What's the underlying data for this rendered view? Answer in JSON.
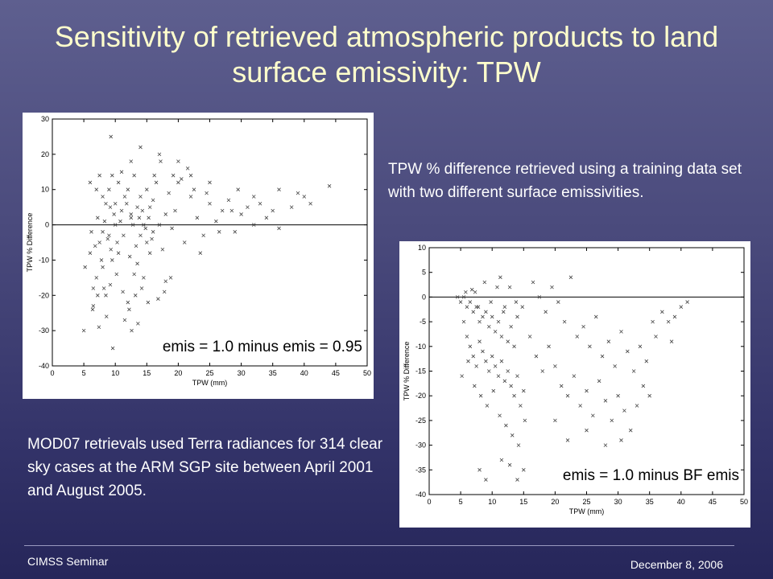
{
  "slide": {
    "title": "Sensitivity of retrieved atmospheric products to land surface emissivity: TPW",
    "description_right": "TPW % difference retrieved using a training data set with two different surface emissivities.",
    "description_left": "MOD07 retrievals used Terra radiances for 314 clear sky cases at the ARM SGP site between April 2001 and August 2005.",
    "footer_left": "CIMSS Seminar",
    "footer_right": "December 8, 2006"
  },
  "chart_data": [
    {
      "type": "scatter",
      "label": "emis = 1.0 minus emis = 0.95",
      "xlabel": "TPW (mm)",
      "ylabel": "TPW % Difference",
      "xlim": [
        0,
        50
      ],
      "ylim": [
        -40,
        30
      ],
      "xticks": [
        0,
        5,
        10,
        15,
        20,
        25,
        30,
        35,
        40,
        45,
        50
      ],
      "yticks": [
        -40,
        -30,
        -20,
        -10,
        0,
        10,
        20,
        30
      ],
      "reference_line_y": 0,
      "marker": "x",
      "points": [
        [
          5,
          -30
        ],
        [
          5.2,
          -12
        ],
        [
          6,
          -8
        ],
        [
          6.5,
          -23
        ],
        [
          7,
          -15
        ],
        [
          7.5,
          -5
        ],
        [
          8,
          -2
        ],
        [
          8,
          -12
        ],
        [
          8.5,
          -20
        ],
        [
          9,
          -3
        ],
        [
          9.2,
          5
        ],
        [
          9.5,
          -10
        ],
        [
          10,
          0
        ],
        [
          10.5,
          -8
        ],
        [
          11,
          15
        ],
        [
          11.5,
          -27
        ],
        [
          12,
          -22
        ],
        [
          12.5,
          3
        ],
        [
          13,
          -14
        ],
        [
          13.5,
          -11
        ],
        [
          14,
          8
        ],
        [
          14.5,
          -15
        ],
        [
          15,
          -5
        ],
        [
          15.5,
          5
        ],
        [
          16,
          -2
        ],
        [
          16.5,
          12
        ],
        [
          17,
          0
        ],
        [
          17.5,
          -7
        ],
        [
          18,
          3
        ],
        [
          18.5,
          9
        ],
        [
          19,
          -1
        ],
        [
          19.5,
          4
        ],
        [
          20,
          12
        ],
        [
          21,
          -5
        ],
        [
          22,
          8
        ],
        [
          23,
          2
        ],
        [
          24,
          -3
        ],
        [
          25,
          6
        ],
        [
          26,
          1
        ],
        [
          27,
          4
        ],
        [
          28,
          7
        ],
        [
          29,
          -2
        ],
        [
          30,
          3
        ],
        [
          31,
          5
        ],
        [
          32,
          0
        ],
        [
          33,
          6
        ],
        [
          34,
          2
        ],
        [
          35,
          4
        ],
        [
          36,
          -1
        ],
        [
          38,
          5
        ],
        [
          40,
          8
        ],
        [
          41,
          6
        ],
        [
          6,
          12
        ],
        [
          7,
          10
        ],
        [
          7.5,
          14
        ],
        [
          8,
          8
        ],
        [
          8.5,
          6
        ],
        [
          9,
          10
        ],
        [
          9.5,
          14
        ],
        [
          10,
          6
        ],
        [
          10.5,
          12
        ],
        [
          11,
          4
        ],
        [
          11.5,
          8
        ],
        [
          12,
          10
        ],
        [
          12.5,
          2
        ],
        [
          13,
          14
        ],
        [
          13.5,
          5
        ],
        [
          14,
          -3
        ],
        [
          14.5,
          0
        ],
        [
          15,
          10
        ],
        [
          15.5,
          -8
        ],
        [
          16,
          7
        ],
        [
          6.2,
          -2
        ],
        [
          6.8,
          -6
        ],
        [
          7.2,
          2
        ],
        [
          7.8,
          -10
        ],
        [
          8.3,
          1
        ],
        [
          8.8,
          -4
        ],
        [
          9.3,
          -7
        ],
        [
          9.8,
          3
        ],
        [
          10.3,
          -5
        ],
        [
          10.8,
          1
        ],
        [
          11.3,
          -3
        ],
        [
          11.8,
          6
        ],
        [
          12.3,
          -9
        ],
        [
          12.8,
          0
        ],
        [
          13.3,
          -6
        ],
        [
          13.8,
          2
        ],
        [
          14.3,
          4
        ],
        [
          14.8,
          -1
        ],
        [
          15.3,
          2
        ],
        [
          15.8,
          -4
        ],
        [
          16.2,
          14
        ],
        [
          17.2,
          18
        ],
        [
          19.2,
          14
        ],
        [
          20.5,
          13
        ],
        [
          21.5,
          16
        ],
        [
          22.5,
          10
        ],
        [
          23.5,
          -8
        ],
        [
          24.5,
          9
        ],
        [
          26.5,
          -2
        ],
        [
          28.5,
          4
        ],
        [
          6.5,
          -18
        ],
        [
          7.2,
          -20
        ],
        [
          8.2,
          -18
        ],
        [
          9.2,
          -17
        ],
        [
          10.2,
          -14
        ],
        [
          11.2,
          -19
        ],
        [
          12.2,
          -24
        ],
        [
          13.2,
          -20
        ],
        [
          14.2,
          -18
        ],
        [
          15.2,
          -22
        ],
        [
          16.8,
          -21
        ],
        [
          17.8,
          -19
        ],
        [
          18.8,
          -15
        ],
        [
          6.4,
          -24
        ],
        [
          7.4,
          -29
        ],
        [
          8.6,
          -26
        ],
        [
          9.6,
          -35
        ],
        [
          12.6,
          -30
        ],
        [
          13.6,
          -28
        ],
        [
          18,
          -16
        ],
        [
          9.3,
          25
        ],
        [
          12.5,
          18
        ],
        [
          14,
          22
        ],
        [
          17,
          20
        ],
        [
          20,
          18
        ],
        [
          22,
          14
        ],
        [
          25,
          12
        ],
        [
          29.5,
          10
        ],
        [
          32,
          8
        ],
        [
          36,
          10
        ],
        [
          39,
          9
        ],
        [
          44,
          11
        ]
      ]
    },
    {
      "type": "scatter",
      "label": "emis = 1.0 minus BF emis",
      "xlabel": "TPW (mm)",
      "ylabel": "TPW % Difference",
      "xlim": [
        0,
        50
      ],
      "ylim": [
        -40,
        10
      ],
      "xticks": [
        0,
        5,
        10,
        15,
        20,
        25,
        30,
        35,
        40,
        45,
        50
      ],
      "yticks": [
        -40,
        -35,
        -30,
        -25,
        -20,
        -15,
        -10,
        -5,
        0,
        5,
        10
      ],
      "reference_line_y": 0,
      "marker": "x",
      "points": [
        [
          4.5,
          0
        ],
        [
          5,
          -1
        ],
        [
          5.5,
          0
        ],
        [
          6,
          -2
        ],
        [
          6.5,
          -1
        ],
        [
          7,
          -3
        ],
        [
          7.5,
          -2
        ],
        [
          8,
          -5
        ],
        [
          8.5,
          -4
        ],
        [
          9,
          -3
        ],
        [
          9.5,
          -6
        ],
        [
          10,
          -4
        ],
        [
          10.5,
          -7
        ],
        [
          11,
          -5
        ],
        [
          11.5,
          -8
        ],
        [
          12,
          -2
        ],
        [
          12.5,
          -9
        ],
        [
          13,
          -6
        ],
        [
          13.5,
          -10
        ],
        [
          14,
          -4
        ],
        [
          5.5,
          -5
        ],
        [
          6,
          -8
        ],
        [
          6.5,
          -10
        ],
        [
          7,
          -12
        ],
        [
          7.5,
          -14
        ],
        [
          8,
          -9
        ],
        [
          8.5,
          -11
        ],
        [
          9,
          -13
        ],
        [
          9.5,
          -15
        ],
        [
          10,
          -12
        ],
        [
          10.5,
          -14
        ],
        [
          11,
          -16
        ],
        [
          11.5,
          -13
        ],
        [
          12,
          -17
        ],
        [
          12.5,
          -15
        ],
        [
          13,
          -18
        ],
        [
          13.5,
          -20
        ],
        [
          14,
          -16
        ],
        [
          14.5,
          -22
        ],
        [
          15,
          -19
        ],
        [
          5.2,
          -16
        ],
        [
          6.2,
          -13
        ],
        [
          7.2,
          -18
        ],
        [
          8.2,
          -20
        ],
        [
          9.2,
          -22
        ],
        [
          10.2,
          -19
        ],
        [
          11.2,
          -24
        ],
        [
          12.2,
          -26
        ],
        [
          13.2,
          -28
        ],
        [
          14.2,
          -30
        ],
        [
          15.2,
          -25
        ],
        [
          7.8,
          -2
        ],
        [
          9.8,
          -1
        ],
        [
          11.8,
          -3
        ],
        [
          12.8,
          2
        ],
        [
          13.8,
          -1
        ],
        [
          14.8,
          -2
        ],
        [
          8.8,
          3
        ],
        [
          10.8,
          2
        ],
        [
          11.3,
          4
        ],
        [
          16,
          -8
        ],
        [
          17,
          -12
        ],
        [
          18,
          -15
        ],
        [
          19,
          -10
        ],
        [
          20,
          -14
        ],
        [
          21,
          -18
        ],
        [
          22,
          -20
        ],
        [
          23,
          -16
        ],
        [
          24,
          -22
        ],
        [
          25,
          -19
        ],
        [
          26,
          -24
        ],
        [
          27,
          -17
        ],
        [
          28,
          -21
        ],
        [
          29,
          -25
        ],
        [
          30,
          -20
        ],
        [
          31,
          -23
        ],
        [
          32,
          -27
        ],
        [
          33,
          -22
        ],
        [
          34,
          -18
        ],
        [
          35,
          -20
        ],
        [
          16.5,
          3
        ],
        [
          17.5,
          0
        ],
        [
          18.5,
          -3
        ],
        [
          19.5,
          2
        ],
        [
          20.5,
          -1
        ],
        [
          21.5,
          -5
        ],
        [
          22.5,
          4
        ],
        [
          23.5,
          -8
        ],
        [
          24.5,
          -6
        ],
        [
          25.5,
          -10
        ],
        [
          26.5,
          -4
        ],
        [
          27.5,
          -12
        ],
        [
          28.5,
          -9
        ],
        [
          29.5,
          -14
        ],
        [
          30.5,
          -7
        ],
        [
          31.5,
          -11
        ],
        [
          32.5,
          -15
        ],
        [
          33.5,
          -10
        ],
        [
          34.5,
          -13
        ],
        [
          35.5,
          -5
        ],
        [
          37,
          -3
        ],
        [
          38,
          -5
        ],
        [
          39,
          -4
        ],
        [
          40,
          -2
        ],
        [
          41,
          -1
        ],
        [
          36,
          -8
        ],
        [
          38.5,
          -9
        ],
        [
          15,
          -35
        ],
        [
          14,
          -37
        ],
        [
          12.8,
          -34
        ],
        [
          11.5,
          -33
        ],
        [
          9,
          -37
        ],
        [
          8,
          -35
        ],
        [
          20,
          -25
        ],
        [
          22,
          -29
        ],
        [
          25,
          -27
        ],
        [
          28,
          -30
        ],
        [
          30.5,
          -29
        ],
        [
          5.8,
          1
        ],
        [
          6.8,
          1.5
        ],
        [
          7.3,
          1
        ]
      ]
    }
  ]
}
